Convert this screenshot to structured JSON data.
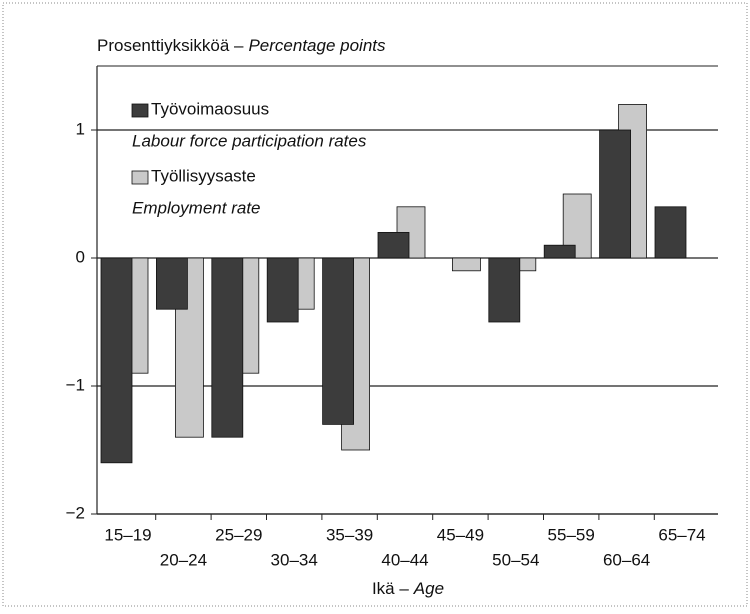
{
  "chart_data": {
    "type": "bar",
    "title": "Prosenttiyksikköä –",
    "title_en": "Percentage points",
    "x_label": "Ikä –",
    "x_label_en": "Age",
    "categories": [
      "15–19",
      "20–24",
      "25–29",
      "30–34",
      "35–39",
      "40–44",
      "45–49",
      "50–54",
      "55–59",
      "60–64",
      "65–74"
    ],
    "series": [
      {
        "name": "Työvoimaosuus",
        "name_en": "Labour force participation rates",
        "color": "#3c3c3c",
        "values": [
          -1.6,
          -0.4,
          -1.4,
          -0.5,
          -1.3,
          0.2,
          0,
          -0.5,
          0.1,
          1.0,
          0.4
        ]
      },
      {
        "name": "Työllisyysaste",
        "name_en": "Employment rate",
        "color": "#c9c9c9",
        "values": [
          -0.9,
          -1.4,
          -0.9,
          -0.4,
          -1.5,
          0.4,
          -0.1,
          -0.1,
          0.5,
          1.2,
          null
        ]
      }
    ],
    "ylim": [
      -2,
      1.5
    ],
    "yticks": [
      {
        "value": -2,
        "label": "−2"
      },
      {
        "value": -1,
        "label": "−1"
      },
      0,
      1
    ],
    "grid": true
  }
}
